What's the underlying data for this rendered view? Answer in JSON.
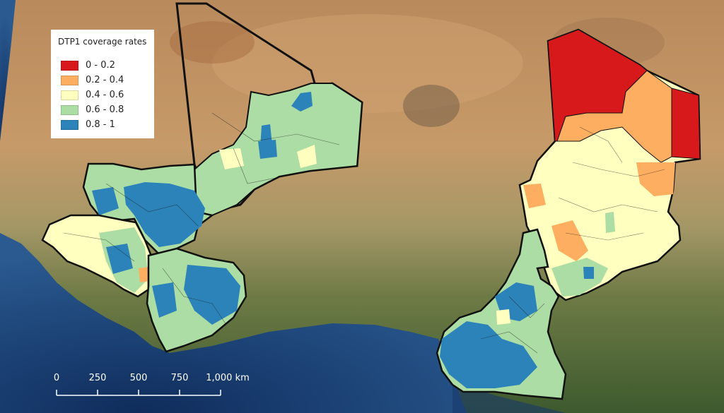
{
  "legend": {
    "title": "DTP1 coverage rates",
    "items": [
      {
        "label": "0 - 0.2",
        "color": "#d7191c"
      },
      {
        "label": "0.2 - 0.4",
        "color": "#fdae61"
      },
      {
        "label": "0.4 - 0.6",
        "color": "#ffffbf"
      },
      {
        "label": "0.6 - 0.8",
        "color": "#abdda4"
      },
      {
        "label": "0.8 - 1",
        "color": "#2b83ba"
      }
    ]
  },
  "scale_bar": {
    "labels": [
      "0",
      "250",
      "500",
      "750",
      "1,000 km"
    ]
  },
  "colors": {
    "ocean": "#1d3f70",
    "desert": "#c99a6a",
    "savanna": "#8f9a5e",
    "forest": "#3f5a30",
    "border": "#111111"
  }
}
